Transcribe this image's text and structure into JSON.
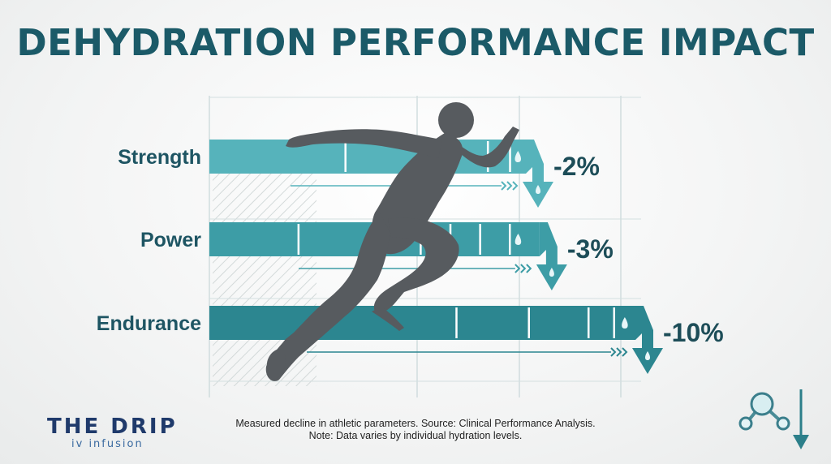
{
  "title": "DEHYDRATION PERFORMANCE IMPACT",
  "chart_data": {
    "type": "bar",
    "orientation": "horizontal",
    "categories": [
      "Strength",
      "Power",
      "Endurance"
    ],
    "values": [
      -2,
      -3,
      -10
    ],
    "value_labels": [
      "-2%",
      "-3%",
      "-10%"
    ],
    "unit": "%",
    "colors": [
      "#56b3bb",
      "#3d9da6",
      "#2c8690"
    ],
    "grid": true
  },
  "footnote": {
    "line1": "Measured decline in athletic parameters. Source: Clinical Performance Analysis.",
    "line2": "Note: Data varies by individual hydration levels."
  },
  "logo": {
    "main": "THE DRIP",
    "sub": "iv infusion"
  },
  "icons": {
    "runner": "runner-silhouette-icon",
    "drop": "water-drop-icon",
    "down_arrow": "down-arrow-icon",
    "molecule": "molecule-icon"
  }
}
